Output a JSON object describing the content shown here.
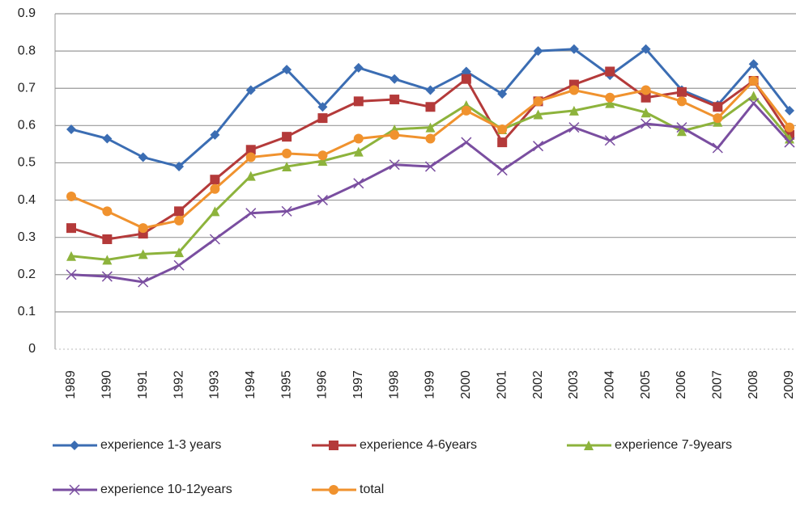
{
  "chart_data": {
    "type": "line",
    "categories": [
      "1989",
      "1990",
      "1991",
      "1992",
      "1993",
      "1994",
      "1995",
      "1996",
      "1997",
      "1998",
      "1999",
      "2000",
      "2001",
      "2002",
      "2003",
      "2004",
      "2005",
      "2006",
      "2007",
      "2008",
      "2009"
    ],
    "series": [
      {
        "name": "experience 1-3 years",
        "color": "#3b6db3",
        "marker": "diamond",
        "values": [
          0.59,
          0.565,
          0.515,
          0.49,
          0.575,
          0.695,
          0.75,
          0.65,
          0.755,
          0.725,
          0.695,
          0.745,
          0.685,
          0.8,
          0.805,
          0.735,
          0.805,
          0.695,
          0.655,
          0.765,
          0.64
        ]
      },
      {
        "name": "experience 4-6years",
        "color": "#b43a3a",
        "marker": "square",
        "values": [
          0.325,
          0.295,
          0.31,
          0.37,
          0.455,
          0.535,
          0.57,
          0.62,
          0.665,
          0.67,
          0.65,
          0.725,
          0.555,
          0.665,
          0.71,
          0.745,
          0.675,
          0.69,
          0.65,
          0.72,
          0.575
        ]
      },
      {
        "name": "experience 7-9years",
        "color": "#8db33c",
        "marker": "triangle",
        "values": [
          0.25,
          0.24,
          0.255,
          0.26,
          0.37,
          0.465,
          0.49,
          0.505,
          0.53,
          0.59,
          0.595,
          0.655,
          0.59,
          0.63,
          0.64,
          0.66,
          0.635,
          0.585,
          0.61,
          0.68,
          0.565
        ]
      },
      {
        "name": "experience 10-12years",
        "color": "#7a4ea0",
        "marker": "x",
        "values": [
          0.2,
          0.195,
          0.18,
          0.225,
          0.295,
          0.365,
          0.37,
          0.4,
          0.445,
          0.495,
          0.49,
          0.555,
          0.48,
          0.545,
          0.595,
          0.56,
          0.605,
          0.595,
          0.54,
          0.66,
          0.555
        ]
      },
      {
        "name": "total",
        "color": "#f0922e",
        "marker": "circle",
        "values": [
          0.41,
          0.37,
          0.325,
          0.345,
          0.43,
          0.515,
          0.525,
          0.52,
          0.565,
          0.575,
          0.565,
          0.64,
          0.59,
          0.665,
          0.695,
          0.675,
          0.695,
          0.665,
          0.62,
          0.72,
          0.595
        ]
      }
    ],
    "ylim": [
      0,
      0.9
    ],
    "yticks": [
      0,
      0.1,
      0.2,
      0.3,
      0.4,
      0.5,
      0.6,
      0.7,
      0.8,
      0.9
    ],
    "grid": true
  }
}
